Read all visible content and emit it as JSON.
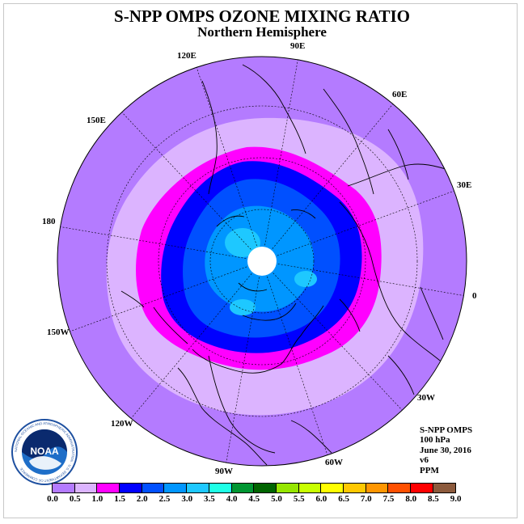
{
  "title": "S-NPP OMPS OZONE MIXING RATIO",
  "subtitle": "Northern Hemisphere",
  "longitude_labels": {
    "e120": "120E",
    "e90": "90E",
    "e60": "60E",
    "e150": "150E",
    "e30": "30E",
    "e180": "180",
    "e0": "0",
    "w150": "150W",
    "w30": "30W",
    "w120": "120W",
    "w60": "60W",
    "w90": "90W"
  },
  "info": {
    "instrument": "S-NPP OMPS",
    "level": "100 hPa",
    "date": "June 30, 2016",
    "version": "v6",
    "units": "PPM"
  },
  "logo": {
    "text": "NOAA",
    "ring_text": "NATIONAL OCEANIC AND ATMOSPHERIC ADMINISTRATION · U.S. DEPARTMENT OF COMMERCE"
  },
  "colorbar": {
    "ticks": [
      "0.0",
      "0.5",
      "1.0",
      "1.5",
      "2.0",
      "2.5",
      "3.0",
      "3.5",
      "4.0",
      "4.5",
      "5.0",
      "5.5",
      "6.0",
      "6.5",
      "7.0",
      "7.5",
      "8.0",
      "8.5",
      "9.0"
    ],
    "colors": [
      "#b47bff",
      "#dcb4ff",
      "#ff00ff",
      "#0000ff",
      "#0050ff",
      "#0096ff",
      "#1ec8ff",
      "#1effe6",
      "#009632",
      "#006400",
      "#96e600",
      "#c8ff00",
      "#ffff00",
      "#ffc800",
      "#ff9600",
      "#ff5000",
      "#ff0000",
      "#8c5a3c"
    ]
  },
  "chart_data": {
    "type": "heatmap",
    "title": "S-NPP OMPS OZONE MIXING RATIO",
    "subtitle": "Northern Hemisphere",
    "units": "PPM",
    "level": "100 hPa",
    "date": "June 30, 2016",
    "projection": "north polar stereographic",
    "field_bands_ppm": [
      {
        "range": [
          0.0,
          0.5
        ],
        "where": "outer subtropics/tropics ring"
      },
      {
        "range": [
          0.5,
          1.0
        ],
        "where": "subtropical ring"
      },
      {
        "range": [
          1.0,
          1.5
        ],
        "where": "mid-latitude ring"
      },
      {
        "range": [
          1.5,
          2.0
        ],
        "where": "high mid-latitudes"
      },
      {
        "range": [
          2.0,
          2.5
        ],
        "where": "sub-polar"
      },
      {
        "range": [
          2.5,
          3.0
        ],
        "where": "polar cap"
      },
      {
        "range": [
          3.0,
          3.5
        ],
        "where": "near pole patches"
      }
    ],
    "no_data": "polar gap at North Pole",
    "colorbar_min": 0.0,
    "colorbar_max": 9.0,
    "colorbar_step": 0.5
  }
}
